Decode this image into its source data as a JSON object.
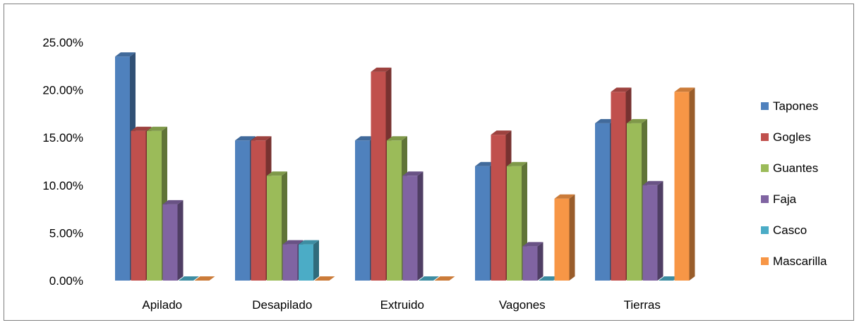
{
  "chart_data": {
    "type": "bar",
    "categories": [
      "Apilado",
      "Desapilado",
      "Extruido",
      "Vagones",
      "Tierras"
    ],
    "series": [
      {
        "name": "Tapones",
        "color": "#4F81BD",
        "values": [
          23.5,
          14.7,
          14.7,
          12.0,
          16.5
        ]
      },
      {
        "name": "Gogles",
        "color": "#C0504D",
        "values": [
          15.7,
          14.7,
          21.9,
          15.3,
          19.8
        ]
      },
      {
        "name": "Guantes",
        "color": "#9BBB59",
        "values": [
          15.7,
          11.0,
          14.7,
          12.0,
          16.5
        ]
      },
      {
        "name": "Faja",
        "color": "#8064A2",
        "values": [
          8.0,
          3.8,
          11.0,
          3.6,
          10.0
        ]
      },
      {
        "name": "Casco",
        "color": "#4BACC6",
        "values": [
          0.0,
          3.8,
          0.0,
          0.0,
          0.0
        ]
      },
      {
        "name": "Mascarilla",
        "color": "#F79646",
        "values": [
          0.0,
          0.0,
          0.0,
          8.6,
          19.8
        ]
      }
    ],
    "y_ticks": [
      "0.00%",
      "5.00%",
      "10.00%",
      "15.00%",
      "20.00%",
      "25.00%"
    ],
    "ylim": [
      0,
      25
    ],
    "grid": false,
    "legend": "right",
    "style": "3d-clustered-column"
  }
}
